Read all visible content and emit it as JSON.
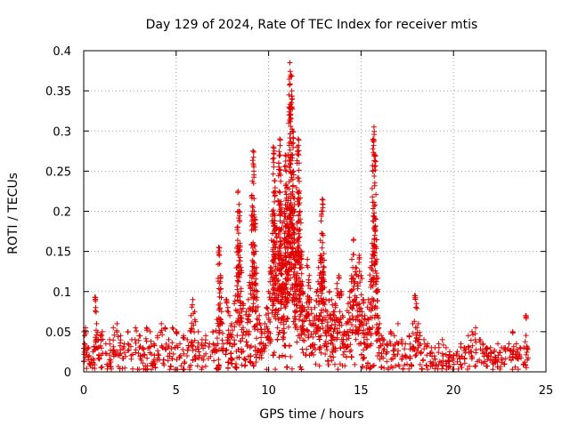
{
  "chart_data": {
    "type": "scatter",
    "title": "Day 129 of 2024, Rate Of TEC Index for receiver mtis",
    "xlabel": "GPS time / hours",
    "ylabel": "ROTI / TECUs",
    "xlim": [
      0,
      25
    ],
    "ylim": [
      0,
      0.4
    ],
    "x_ticks": [
      0,
      5,
      10,
      15,
      20,
      25
    ],
    "y_ticks": [
      0,
      0.05,
      0.1,
      0.15,
      0.2,
      0.25,
      0.3,
      0.35,
      0.4
    ],
    "x_tick_labels": [
      "0",
      "5",
      "10",
      "15",
      "20",
      "25"
    ],
    "y_tick_labels": [
      "0",
      "0.05",
      "0.1",
      "0.15",
      "0.2",
      "0.25",
      "0.3",
      "0.35",
      "0.4"
    ],
    "grid": true,
    "marker": "+",
    "color": "#e00000",
    "series": [
      {
        "name": "ROTI",
        "points": [
          [
            0.0,
            0.05
          ],
          [
            0.1,
            0.055
          ],
          [
            0.05,
            0.035
          ],
          [
            0.2,
            0.03
          ],
          [
            0.3,
            0.02
          ],
          [
            0.4,
            0.015
          ],
          [
            0.5,
            0.025
          ],
          [
            0.6,
            0.093
          ],
          [
            0.65,
            0.08
          ],
          [
            0.7,
            0.06
          ],
          [
            0.8,
            0.04
          ],
          [
            0.9,
            0.045
          ],
          [
            1.0,
            0.05
          ],
          [
            1.2,
            0.035
          ],
          [
            1.4,
            0.04
          ],
          [
            1.6,
            0.055
          ],
          [
            1.8,
            0.06
          ],
          [
            2.0,
            0.045
          ],
          [
            2.2,
            0.035
          ],
          [
            2.4,
            0.05
          ],
          [
            2.6,
            0.04
          ],
          [
            2.8,
            0.055
          ],
          [
            3.0,
            0.045
          ],
          [
            3.2,
            0.03
          ],
          [
            3.4,
            0.055
          ],
          [
            3.6,
            0.05
          ],
          [
            3.8,
            0.035
          ],
          [
            4.0,
            0.045
          ],
          [
            4.2,
            0.06
          ],
          [
            4.4,
            0.055
          ],
          [
            4.6,
            0.04
          ],
          [
            4.8,
            0.055
          ],
          [
            5.0,
            0.05
          ],
          [
            5.2,
            0.035
          ],
          [
            5.4,
            0.045
          ],
          [
            5.6,
            0.04
          ],
          [
            5.8,
            0.07
          ],
          [
            5.9,
            0.09
          ],
          [
            6.0,
            0.075
          ],
          [
            6.2,
            0.05
          ],
          [
            6.4,
            0.04
          ],
          [
            6.6,
            0.045
          ],
          [
            6.8,
            0.035
          ],
          [
            7.0,
            0.05
          ],
          [
            7.2,
            0.065
          ],
          [
            7.3,
            0.155
          ],
          [
            7.35,
            0.135
          ],
          [
            7.4,
            0.12
          ],
          [
            7.5,
            0.06
          ],
          [
            7.7,
            0.09
          ],
          [
            7.8,
            0.08
          ],
          [
            7.9,
            0.07
          ],
          [
            8.0,
            0.06
          ],
          [
            8.2,
            0.095
          ],
          [
            8.3,
            0.18
          ],
          [
            8.35,
            0.225
          ],
          [
            8.4,
            0.2
          ],
          [
            8.45,
            0.16
          ],
          [
            8.5,
            0.13
          ],
          [
            8.6,
            0.085
          ],
          [
            8.8,
            0.075
          ],
          [
            8.9,
            0.09
          ],
          [
            9.0,
            0.12
          ],
          [
            9.1,
            0.22
          ],
          [
            9.15,
            0.275
          ],
          [
            9.2,
            0.25
          ],
          [
            9.25,
            0.19
          ],
          [
            9.3,
            0.15
          ],
          [
            9.4,
            0.1
          ],
          [
            9.5,
            0.07
          ],
          [
            9.6,
            0.05
          ],
          [
            9.7,
            0.035
          ],
          [
            9.8,
            0.06
          ],
          [
            9.9,
            0.08
          ],
          [
            10.0,
            0.1
          ],
          [
            10.1,
            0.13
          ],
          [
            10.2,
            0.2
          ],
          [
            10.25,
            0.28
          ],
          [
            10.3,
            0.275
          ],
          [
            10.35,
            0.22
          ],
          [
            10.4,
            0.18
          ],
          [
            10.5,
            0.15
          ],
          [
            10.55,
            0.26
          ],
          [
            10.6,
            0.29
          ],
          [
            10.65,
            0.245
          ],
          [
            10.7,
            0.2
          ],
          [
            10.75,
            0.14
          ],
          [
            10.8,
            0.11
          ],
          [
            10.85,
            0.2
          ],
          [
            10.9,
            0.27
          ],
          [
            10.95,
            0.25
          ],
          [
            11.0,
            0.23
          ],
          [
            11.05,
            0.18
          ],
          [
            11.1,
            0.33
          ],
          [
            11.15,
            0.385
          ],
          [
            11.2,
            0.37
          ],
          [
            11.25,
            0.35
          ],
          [
            11.3,
            0.3
          ],
          [
            11.35,
            0.25
          ],
          [
            11.4,
            0.2
          ],
          [
            11.45,
            0.15
          ],
          [
            11.5,
            0.12
          ],
          [
            11.55,
            0.28
          ],
          [
            11.6,
            0.29
          ],
          [
            11.65,
            0.26
          ],
          [
            11.7,
            0.2
          ],
          [
            11.75,
            0.15
          ],
          [
            11.8,
            0.13
          ],
          [
            11.85,
            0.1
          ],
          [
            11.9,
            0.08
          ],
          [
            12.0,
            0.07
          ],
          [
            12.1,
            0.14
          ],
          [
            12.2,
            0.12
          ],
          [
            12.3,
            0.09
          ],
          [
            12.4,
            0.06
          ],
          [
            12.5,
            0.08
          ],
          [
            12.6,
            0.1
          ],
          [
            12.7,
            0.13
          ],
          [
            12.8,
            0.145
          ],
          [
            12.85,
            0.2
          ],
          [
            12.9,
            0.215
          ],
          [
            12.95,
            0.17
          ],
          [
            13.0,
            0.13
          ],
          [
            13.1,
            0.09
          ],
          [
            13.2,
            0.07
          ],
          [
            13.3,
            0.1
          ],
          [
            13.4,
            0.09
          ],
          [
            13.5,
            0.075
          ],
          [
            13.6,
            0.085
          ],
          [
            13.7,
            0.11
          ],
          [
            13.8,
            0.12
          ],
          [
            13.9,
            0.1
          ],
          [
            14.0,
            0.07
          ],
          [
            14.1,
            0.05
          ],
          [
            14.2,
            0.06
          ],
          [
            14.3,
            0.085
          ],
          [
            14.4,
            0.1
          ],
          [
            14.5,
            0.14
          ],
          [
            14.6,
            0.165
          ],
          [
            14.7,
            0.13
          ],
          [
            14.8,
            0.11
          ],
          [
            14.9,
            0.145
          ],
          [
            15.0,
            0.12
          ],
          [
            15.1,
            0.09
          ],
          [
            15.2,
            0.07
          ],
          [
            15.3,
            0.06
          ],
          [
            15.4,
            0.09
          ],
          [
            15.5,
            0.13
          ],
          [
            15.6,
            0.16
          ],
          [
            15.65,
            0.29
          ],
          [
            15.7,
            0.305
          ],
          [
            15.75,
            0.27
          ],
          [
            15.8,
            0.19
          ],
          [
            15.85,
            0.14
          ],
          [
            15.9,
            0.1
          ],
          [
            16.0,
            0.06
          ],
          [
            16.1,
            0.045
          ],
          [
            16.2,
            0.04
          ],
          [
            16.4,
            0.035
          ],
          [
            16.6,
            0.05
          ],
          [
            16.8,
            0.045
          ],
          [
            17.0,
            0.06
          ],
          [
            17.2,
            0.04
          ],
          [
            17.4,
            0.035
          ],
          [
            17.6,
            0.045
          ],
          [
            17.8,
            0.06
          ],
          [
            17.9,
            0.095
          ],
          [
            18.0,
            0.085
          ],
          [
            18.1,
            0.06
          ],
          [
            18.2,
            0.045
          ],
          [
            18.4,
            0.04
          ],
          [
            18.6,
            0.035
          ],
          [
            18.8,
            0.03
          ],
          [
            19.0,
            0.03
          ],
          [
            19.2,
            0.035
          ],
          [
            19.4,
            0.04
          ],
          [
            19.6,
            0.03
          ],
          [
            19.8,
            0.025
          ],
          [
            20.0,
            0.02
          ],
          [
            20.2,
            0.025
          ],
          [
            20.4,
            0.035
          ],
          [
            20.6,
            0.03
          ],
          [
            20.8,
            0.045
          ],
          [
            21.0,
            0.05
          ],
          [
            21.2,
            0.055
          ],
          [
            21.4,
            0.04
          ],
          [
            21.6,
            0.035
          ],
          [
            21.8,
            0.03
          ],
          [
            22.0,
            0.03
          ],
          [
            22.2,
            0.025
          ],
          [
            22.4,
            0.035
          ],
          [
            22.6,
            0.03
          ],
          [
            22.8,
            0.03
          ],
          [
            23.0,
            0.035
          ],
          [
            23.2,
            0.05
          ],
          [
            23.4,
            0.035
          ],
          [
            23.6,
            0.03
          ],
          [
            23.8,
            0.03
          ],
          [
            23.9,
            0.07
          ],
          [
            24.0,
            0.03
          ]
        ]
      }
    ]
  }
}
